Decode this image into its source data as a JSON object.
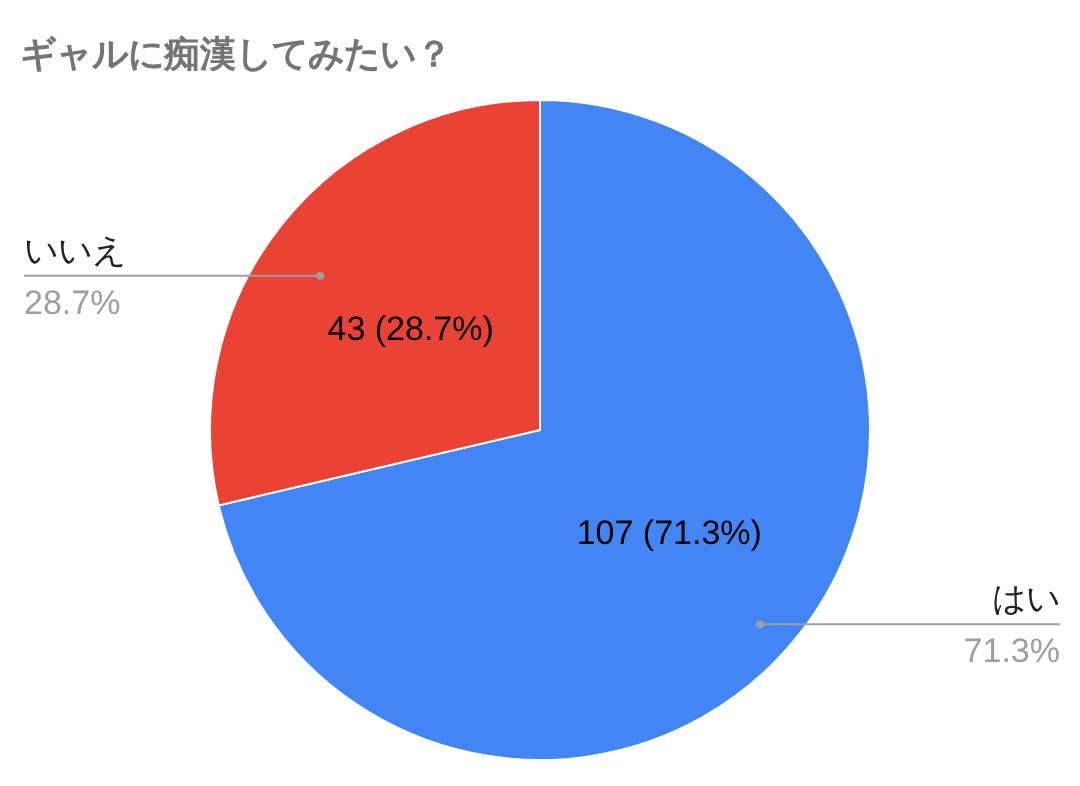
{
  "chart_data": {
    "type": "pie",
    "title": "ギャルに痴漢してみたい？",
    "categories": [
      "はい",
      "いいえ"
    ],
    "values": [
      107,
      43
    ],
    "colors": [
      "#4285f4",
      "#ea4335"
    ],
    "value_labels": [
      "107 (71.3%)",
      "43 (28.7%)"
    ],
    "annotations": [
      "71.3%",
      "28.7%"
    ]
  }
}
